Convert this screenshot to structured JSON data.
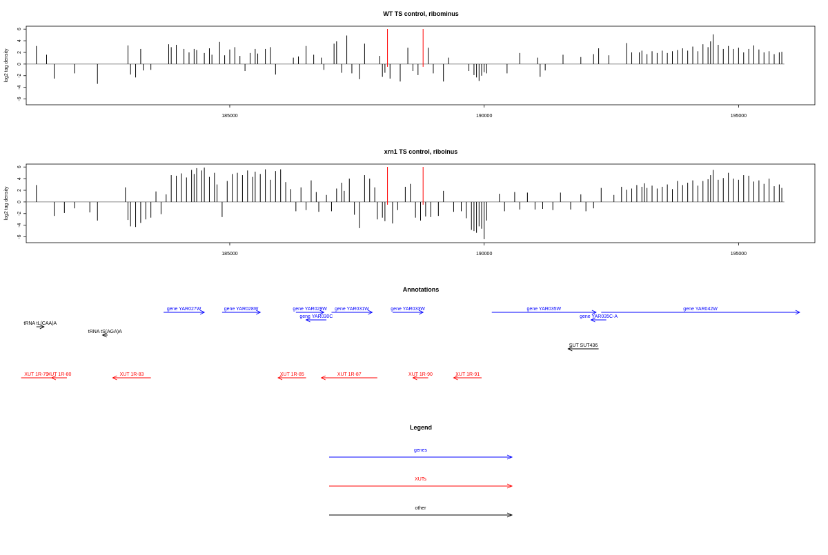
{
  "chart_data": [
    {
      "type": "bar",
      "title": "WT TS control, ribominus",
      "ylabel": "log2 tag density",
      "xlabel": "",
      "xlim": [
        181000,
        196500
      ],
      "ylim": [
        -7,
        6.5
      ],
      "xticks": [
        185000,
        190000,
        195000
      ],
      "xtick_labels": [
        "185000",
        "190000",
        "195000"
      ],
      "yticks": [
        -6,
        -4,
        -2,
        0,
        2,
        4,
        6
      ],
      "ytick_labels": [
        "-6",
        "-4",
        "-2",
        "0",
        "2",
        "4",
        "6"
      ],
      "xrange": [
        181000,
        195900
      ],
      "markers": [
        188100,
        188800
      ],
      "marker_color": "#ff0000",
      "bar_color": "#000000",
      "bars": [
        [
          181200,
          3.1
        ],
        [
          181400,
          1.6
        ],
        [
          181550,
          -2.5
        ],
        [
          181950,
          -1.6
        ],
        [
          182400,
          -3.4
        ],
        [
          183000,
          3.2
        ],
        [
          183050,
          -1.8
        ],
        [
          183150,
          -2.3
        ],
        [
          183250,
          2.6
        ],
        [
          183300,
          -1.1
        ],
        [
          183450,
          -1.0
        ],
        [
          183800,
          3.4
        ],
        [
          183850,
          2.9
        ],
        [
          183950,
          3.3
        ],
        [
          184100,
          2.6
        ],
        [
          184200,
          2.0
        ],
        [
          184300,
          2.6
        ],
        [
          184350,
          2.4
        ],
        [
          184500,
          1.9
        ],
        [
          184600,
          2.7
        ],
        [
          184650,
          1.6
        ],
        [
          184800,
          3.8
        ],
        [
          184900,
          1.5
        ],
        [
          185000,
          2.5
        ],
        [
          185100,
          2.9
        ],
        [
          185200,
          1.4
        ],
        [
          185300,
          -1.2
        ],
        [
          185400,
          1.9
        ],
        [
          185500,
          2.6
        ],
        [
          185550,
          1.8
        ],
        [
          185700,
          2.6
        ],
        [
          185800,
          2.9
        ],
        [
          185900,
          -1.8
        ],
        [
          186250,
          1.1
        ],
        [
          186350,
          1.3
        ],
        [
          186500,
          3.1
        ],
        [
          186650,
          1.6
        ],
        [
          186800,
          1.1
        ],
        [
          186850,
          -1.0
        ],
        [
          187050,
          3.5
        ],
        [
          187100,
          3.9
        ],
        [
          187200,
          -1.5
        ],
        [
          187300,
          4.9
        ],
        [
          187400,
          -1.6
        ],
        [
          187550,
          -2.6
        ],
        [
          187650,
          3.5
        ],
        [
          187950,
          1.4
        ],
        [
          188000,
          -2.2
        ],
        [
          188050,
          -1.5
        ],
        [
          188150,
          -2.5
        ],
        [
          188350,
          -3.0
        ],
        [
          188500,
          2.8
        ],
        [
          188600,
          -1.2
        ],
        [
          188700,
          -1.9
        ],
        [
          188900,
          2.8
        ],
        [
          189000,
          -1.6
        ],
        [
          189200,
          -3.0
        ],
        [
          189300,
          1.1
        ],
        [
          189700,
          -1.2
        ],
        [
          189800,
          -1.9
        ],
        [
          189850,
          -2.3
        ],
        [
          189900,
          -2.9
        ],
        [
          189950,
          -2.0
        ],
        [
          190000,
          -1.4
        ],
        [
          190050,
          -1.6
        ],
        [
          190450,
          -1.6
        ],
        [
          190700,
          1.9
        ],
        [
          191050,
          1.1
        ],
        [
          191100,
          -2.2
        ],
        [
          191200,
          -1.1
        ],
        [
          191550,
          1.6
        ],
        [
          191900,
          1.2
        ],
        [
          192150,
          1.7
        ],
        [
          192250,
          2.7
        ],
        [
          192450,
          1.5
        ],
        [
          192800,
          3.6
        ],
        [
          192900,
          2.0
        ],
        [
          193050,
          2.0
        ],
        [
          193100,
          2.3
        ],
        [
          193200,
          1.7
        ],
        [
          193300,
          2.2
        ],
        [
          193400,
          1.9
        ],
        [
          193500,
          2.3
        ],
        [
          193600,
          1.9
        ],
        [
          193700,
          2.2
        ],
        [
          193800,
          2.4
        ],
        [
          193900,
          2.7
        ],
        [
          194000,
          2.3
        ],
        [
          194100,
          3.0
        ],
        [
          194200,
          2.2
        ],
        [
          194300,
          3.4
        ],
        [
          194400,
          2.9
        ],
        [
          194450,
          3.9
        ],
        [
          194500,
          5.1
        ],
        [
          194600,
          3.3
        ],
        [
          194700,
          2.6
        ],
        [
          194800,
          3.1
        ],
        [
          194900,
          2.6
        ],
        [
          195000,
          2.8
        ],
        [
          195100,
          2.0
        ],
        [
          195200,
          2.6
        ],
        [
          195300,
          3.2
        ],
        [
          195400,
          2.5
        ],
        [
          195500,
          2.0
        ],
        [
          195600,
          2.2
        ],
        [
          195700,
          1.7
        ],
        [
          195800,
          2.0
        ],
        [
          195850,
          2.1
        ]
      ]
    },
    {
      "type": "bar",
      "title": "xrn1 TS control, riboinus",
      "ylabel": "log2 tag density",
      "xlabel": "",
      "xlim": [
        181000,
        196500
      ],
      "ylim": [
        -7,
        6.5
      ],
      "xticks": [
        185000,
        190000,
        195000
      ],
      "xtick_labels": [
        "185000",
        "190000",
        "195000"
      ],
      "yticks": [
        -6,
        -4,
        -2,
        0,
        2,
        4,
        6
      ],
      "ytick_labels": [
        "-6",
        "-4",
        "-2",
        "0",
        "2",
        "4",
        "6"
      ],
      "xrange": [
        181000,
        195900
      ],
      "markers": [
        188100,
        188800
      ],
      "marker_color": "#ff0000",
      "bar_color": "#000000",
      "bars": [
        [
          181200,
          2.9
        ],
        [
          181550,
          -2.4
        ],
        [
          181750,
          -1.9
        ],
        [
          181950,
          -1.1
        ],
        [
          182250,
          -1.8
        ],
        [
          182400,
          -3.2
        ],
        [
          182950,
          2.5
        ],
        [
          183000,
          -3.1
        ],
        [
          183050,
          -4.2
        ],
        [
          183150,
          -4.3
        ],
        [
          183250,
          -3.6
        ],
        [
          183350,
          -3.0
        ],
        [
          183450,
          -2.7
        ],
        [
          183550,
          1.8
        ],
        [
          183650,
          -2.1
        ],
        [
          183750,
          1.3
        ],
        [
          183850,
          4.6
        ],
        [
          183950,
          4.5
        ],
        [
          184050,
          4.9
        ],
        [
          184150,
          4.2
        ],
        [
          184250,
          5.5
        ],
        [
          184300,
          4.8
        ],
        [
          184350,
          5.8
        ],
        [
          184450,
          5.4
        ],
        [
          184500,
          5.9
        ],
        [
          184600,
          4.3
        ],
        [
          184700,
          5.0
        ],
        [
          184750,
          3.0
        ],
        [
          184850,
          -2.6
        ],
        [
          184950,
          3.6
        ],
        [
          185050,
          4.8
        ],
        [
          185150,
          5.0
        ],
        [
          185250,
          4.6
        ],
        [
          185350,
          5.4
        ],
        [
          185450,
          4.3
        ],
        [
          185500,
          5.2
        ],
        [
          185600,
          4.8
        ],
        [
          185700,
          5.6
        ],
        [
          185800,
          3.8
        ],
        [
          185900,
          5.3
        ],
        [
          186000,
          5.6
        ],
        [
          186100,
          3.4
        ],
        [
          186200,
          2.2
        ],
        [
          186300,
          -1.6
        ],
        [
          186400,
          2.5
        ],
        [
          186500,
          -1.4
        ],
        [
          186600,
          3.7
        ],
        [
          186700,
          1.7
        ],
        [
          186750,
          -1.7
        ],
        [
          186900,
          1.2
        ],
        [
          187000,
          -1.6
        ],
        [
          187100,
          2.3
        ],
        [
          187200,
          3.3
        ],
        [
          187250,
          1.9
        ],
        [
          187350,
          4.0
        ],
        [
          187450,
          -2.2
        ],
        [
          187550,
          -4.5
        ],
        [
          187650,
          4.6
        ],
        [
          187750,
          4.0
        ],
        [
          187850,
          2.5
        ],
        [
          187900,
          -3.0
        ],
        [
          188000,
          -2.7
        ],
        [
          188050,
          -3.3
        ],
        [
          188200,
          -3.7
        ],
        [
          188300,
          -1.4
        ],
        [
          188450,
          2.6
        ],
        [
          188550,
          3.1
        ],
        [
          188650,
          -2.7
        ],
        [
          188750,
          -3.2
        ],
        [
          188850,
          -2.5
        ],
        [
          188950,
          -2.6
        ],
        [
          189100,
          -2.4
        ],
        [
          189200,
          1.9
        ],
        [
          189400,
          -1.7
        ],
        [
          189550,
          -1.6
        ],
        [
          189650,
          -2.8
        ],
        [
          189750,
          -4.8
        ],
        [
          189800,
          -5.0
        ],
        [
          189850,
          -5.3
        ],
        [
          189900,
          -4.2
        ],
        [
          189950,
          -4.6
        ],
        [
          190000,
          -6.4
        ],
        [
          190050,
          -3.2
        ],
        [
          190300,
          1.4
        ],
        [
          190400,
          -1.6
        ],
        [
          190600,
          1.7
        ],
        [
          190700,
          -1.3
        ],
        [
          190850,
          1.6
        ],
        [
          191000,
          -1.3
        ],
        [
          191150,
          -1.2
        ],
        [
          191350,
          -1.4
        ],
        [
          191500,
          1.6
        ],
        [
          191700,
          -1.3
        ],
        [
          191900,
          1.3
        ],
        [
          192000,
          -1.6
        ],
        [
          192150,
          -1.1
        ],
        [
          192300,
          2.4
        ],
        [
          192550,
          1.2
        ],
        [
          192700,
          2.6
        ],
        [
          192800,
          2.1
        ],
        [
          192900,
          2.3
        ],
        [
          193000,
          2.9
        ],
        [
          193100,
          2.6
        ],
        [
          193150,
          3.2
        ],
        [
          193200,
          2.4
        ],
        [
          193300,
          2.8
        ],
        [
          193400,
          2.3
        ],
        [
          193500,
          2.6
        ],
        [
          193600,
          3.0
        ],
        [
          193700,
          2.2
        ],
        [
          193800,
          3.6
        ],
        [
          193900,
          2.9
        ],
        [
          194000,
          3.3
        ],
        [
          194100,
          3.7
        ],
        [
          194200,
          2.8
        ],
        [
          194300,
          3.6
        ],
        [
          194400,
          3.9
        ],
        [
          194450,
          4.6
        ],
        [
          194500,
          5.5
        ],
        [
          194600,
          3.8
        ],
        [
          194700,
          4.1
        ],
        [
          194800,
          5.0
        ],
        [
          194900,
          4.0
        ],
        [
          195000,
          3.8
        ],
        [
          195100,
          4.6
        ],
        [
          195200,
          4.5
        ],
        [
          195300,
          3.5
        ],
        [
          195400,
          3.7
        ],
        [
          195500,
          3.1
        ],
        [
          195600,
          4.0
        ],
        [
          195700,
          2.7
        ],
        [
          195800,
          3.0
        ],
        [
          195850,
          2.4
        ]
      ]
    }
  ],
  "annotations": {
    "title": "Annotations",
    "xlim": [
      181000,
      196500
    ],
    "items": [
      {
        "label": "gene YAR027W",
        "start": 183700,
        "end": 184500,
        "dir": "right",
        "row": 0,
        "color": "#0000ff"
      },
      {
        "label": "gene YAR028W",
        "start": 184850,
        "end": 185600,
        "dir": "right",
        "row": 0,
        "color": "#0000ff"
      },
      {
        "label": "gene YAR029W",
        "start": 186300,
        "end": 186850,
        "dir": "right",
        "row": 0,
        "color": "#0000ff"
      },
      {
        "label": "gene YAR030C",
        "start": 186500,
        "end": 186900,
        "dir": "left",
        "row": 1,
        "color": "#0000ff"
      },
      {
        "label": "gene YAR031W",
        "start": 187000,
        "end": 187800,
        "dir": "right",
        "row": 0,
        "color": "#0000ff"
      },
      {
        "label": "gene YAR033W",
        "start": 188200,
        "end": 188800,
        "dir": "right",
        "row": 0,
        "color": "#0000ff"
      },
      {
        "label": "gene YAR035W",
        "start": 190150,
        "end": 192200,
        "dir": "right",
        "row": 0,
        "color": "#0000ff"
      },
      {
        "label": "gene YAR035C-A",
        "start": 192100,
        "end": 192400,
        "dir": "left",
        "row": 1,
        "color": "#0000ff"
      },
      {
        "label": "gene YAR042W",
        "start": 192300,
        "end": 196200,
        "dir": "right",
        "row": 0,
        "color": "#0000ff"
      },
      {
        "label": "tRNA tL(CAA)A",
        "start": 181200,
        "end": 181350,
        "dir": "right",
        "row": 2,
        "color": "#000000"
      },
      {
        "label": "tRNA tS(AGA)A",
        "start": 182500,
        "end": 182600,
        "dir": "left",
        "row": 3,
        "color": "#000000"
      },
      {
        "label": "SUT SUT436",
        "start": 191650,
        "end": 192250,
        "dir": "left",
        "row": 4,
        "color": "#000000"
      },
      {
        "label": "XUT 1R-79",
        "start": 180900,
        "end": 181500,
        "dir": "none",
        "row": 5,
        "color": "#ff0000"
      },
      {
        "label": "XUT 1R-80",
        "start": 181500,
        "end": 181800,
        "dir": "left",
        "row": 5,
        "color": "#ff0000"
      },
      {
        "label": "XUT 1R-83",
        "start": 182700,
        "end": 183450,
        "dir": "left",
        "row": 5,
        "color": "#ff0000"
      },
      {
        "label": "XUT 1R-85",
        "start": 185950,
        "end": 186500,
        "dir": "left",
        "row": 5,
        "color": "#ff0000"
      },
      {
        "label": "XUT 1R-87",
        "start": 186800,
        "end": 187900,
        "dir": "left",
        "row": 5,
        "color": "#ff0000"
      },
      {
        "label": "XUT 1R-90",
        "start": 188600,
        "end": 188900,
        "dir": "left",
        "row": 5,
        "color": "#ff0000"
      },
      {
        "label": "XUT 1R-91",
        "start": 189400,
        "end": 189950,
        "dir": "left",
        "row": 5,
        "color": "#ff0000"
      }
    ]
  },
  "legend": {
    "title": "Legend",
    "items": [
      {
        "label": "genes",
        "color": "#0000ff"
      },
      {
        "label": "XUTs",
        "color": "#ff0000"
      },
      {
        "label": "other",
        "color": "#000000"
      }
    ]
  }
}
